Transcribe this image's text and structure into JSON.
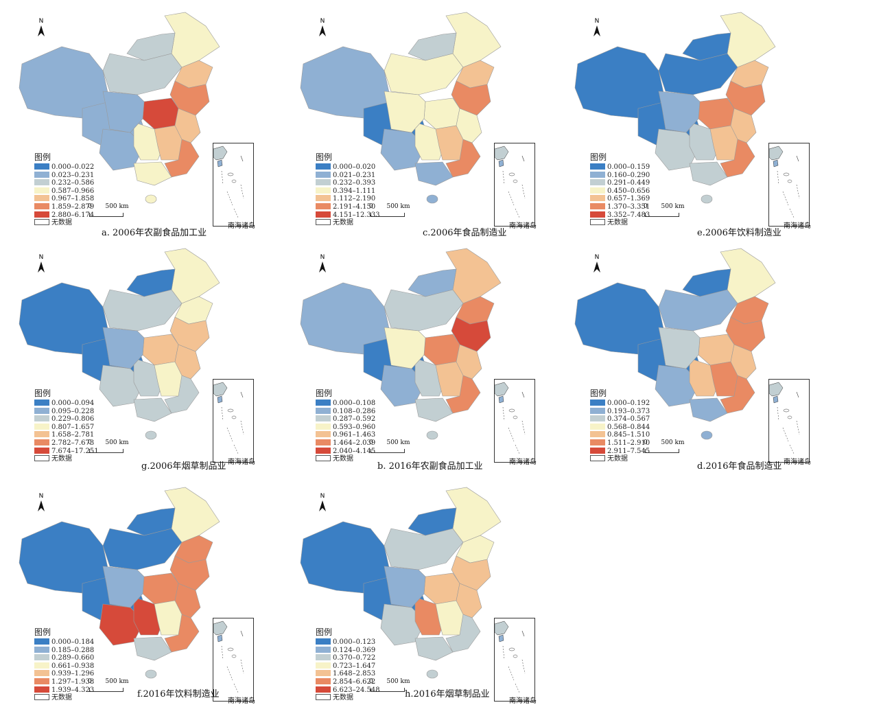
{
  "no_data_label": "无数据",
  "legend_title": "图例",
  "inset_label": "南海诸岛",
  "scale": {
    "zero": "0",
    "dist": "500",
    "unit": "km"
  },
  "north_label": "N",
  "palette": [
    "#3b7fc4",
    "#8fb0d3",
    "#c2cfd2",
    "#f7f3c8",
    "#f3c293",
    "#e98a63",
    "#d64a3a"
  ],
  "panels": [
    {
      "caption": "a. 2006年农副食品加工业",
      "ranges": [
        "0.000–0.022",
        "0.023–0.231",
        "0.232–0.586",
        "0.587–0.966",
        "0.967–1.858",
        "1.859–2.879",
        "2.880–6.174"
      ],
      "regions": [
        1,
        1,
        2,
        3,
        4,
        5,
        6,
        1,
        3,
        4,
        4,
        5,
        3,
        2,
        1
      ]
    },
    {
      "caption": "c.2006年食品制造业",
      "ranges": [
        "0.000–0.020",
        "0.021–0.231",
        "0.232–0.393",
        "0.394–1.111",
        "1.112–2.190",
        "2.191–4.150",
        "4.151–12.333"
      ],
      "regions": [
        1,
        0,
        3,
        3,
        4,
        5,
        3,
        1,
        3,
        4,
        3,
        5,
        1,
        2,
        3
      ]
    },
    {
      "caption": "e.2006年饮料制造业",
      "ranges": [
        "0.000–0.159",
        "0.160–0.290",
        "0.291–0.449",
        "0.450–0.656",
        "0.657–1.369",
        "1.370–3.351",
        "3.352–7.483"
      ],
      "regions": [
        0,
        0,
        0,
        3,
        4,
        5,
        5,
        2,
        2,
        4,
        4,
        5,
        2,
        0,
        1
      ]
    },
    {
      "caption": "g.2006年烟草制品业",
      "ranges": [
        "0.000–0.094",
        "0.095–0.228",
        "0.229–0.806",
        "0.807–1.657",
        "1.658–2.781",
        "2.782–7.673",
        "7.674–17.251"
      ],
      "regions": [
        0,
        0,
        2,
        3,
        3,
        4,
        4,
        2,
        2,
        3,
        4,
        2,
        2,
        0,
        1
      ]
    },
    {
      "caption": "b. 2016年农副食品加工业",
      "ranges": [
        "0.000–0.108",
        "0.108–0.286",
        "0.287–0.592",
        "0.593–0.960",
        "0.961–1.463",
        "1.464–2.039",
        "2.040–4.145"
      ],
      "regions": [
        1,
        0,
        2,
        4,
        5,
        6,
        5,
        1,
        2,
        4,
        4,
        5,
        2,
        1,
        3
      ]
    },
    {
      "caption": "d.2016年食品制造业",
      "ranges": [
        "0.000–0.192",
        "0.193–0.373",
        "0.374–0.567",
        "0.568–0.844",
        "0.845–1.510",
        "1.511–2.910",
        "2.911–7.545"
      ],
      "regions": [
        0,
        0,
        1,
        3,
        5,
        5,
        4,
        1,
        4,
        5,
        4,
        5,
        1,
        0,
        2
      ]
    },
    {
      "caption": "f.2016年饮料制造业",
      "ranges": [
        "0.000–0.184",
        "0.185–0.288",
        "0.289–0.660",
        "0.661–0.938",
        "0.939–1.296",
        "1.297–1.938",
        "1.939–4.323"
      ],
      "regions": [
        0,
        0,
        0,
        3,
        5,
        5,
        5,
        6,
        6,
        3,
        5,
        5,
        2,
        0,
        1
      ]
    },
    {
      "caption": "h.2016年烟草制品业",
      "ranges": [
        "0.000–0.123",
        "0.124–0.369",
        "0.370–0.722",
        "0.723–1.647",
        "1.648–2.853",
        "2.854–6.622",
        "6.623–24.548"
      ],
      "regions": [
        0,
        0,
        2,
        3,
        3,
        4,
        4,
        2,
        5,
        3,
        4,
        2,
        2,
        0,
        1
      ]
    }
  ]
}
